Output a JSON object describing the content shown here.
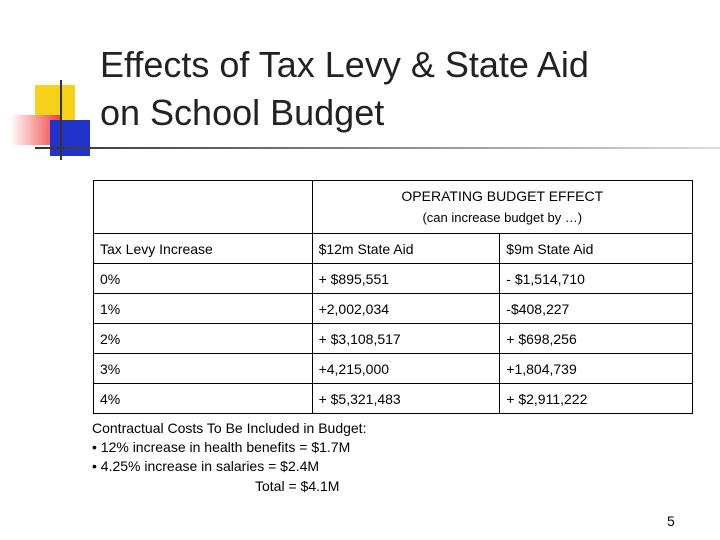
{
  "title": [
    "Effects of Tax Levy & State Aid",
    "on School Budget"
  ],
  "table": {
    "header": [
      "OPERATING BUDGET EFFECT",
      "(can increase budget by …)"
    ],
    "columns": [
      "Tax Levy Increase",
      "$12m State Aid",
      "$9m State Aid"
    ],
    "rows": [
      [
        "0%",
        "+ $895,551",
        "- $1,514,710"
      ],
      [
        "1%",
        "+2,002,034",
        "-$408,227"
      ],
      [
        "2%",
        "+ $3,108,517",
        "+ $698,256"
      ],
      [
        "3%",
        "+4,215,000",
        "+1,804,739"
      ],
      [
        "4%",
        "+ $5,321,483",
        "+ $2,911,222"
      ]
    ]
  },
  "notes": [
    "Contractual Costs To Be Included in Budget:",
    "• 12% increase in health benefits = $1.7M",
    "• 4.25% increase in salaries = $2.4M",
    "Total = $4.1M"
  ],
  "page_number": "5"
}
